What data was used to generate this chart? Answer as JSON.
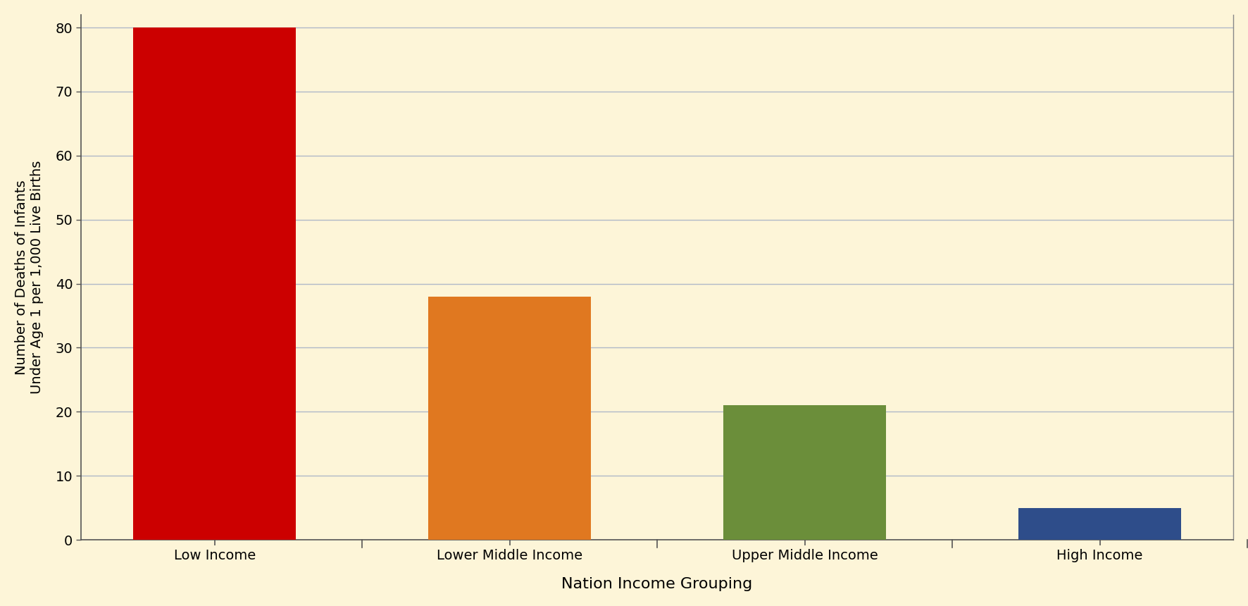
{
  "categories": [
    "Low Income",
    "Lower Middle Income",
    "Upper Middle Income",
    "High Income"
  ],
  "values": [
    80,
    38,
    21,
    5
  ],
  "bar_colors": [
    "#cc0000",
    "#e07820",
    "#6b8e3a",
    "#2e4d8a"
  ],
  "xlabel": "Nation Income Grouping",
  "ylabel": "Number of Deaths of Infants\nUnder Age 1 per 1,000 Live Births",
  "ylim": [
    0,
    82
  ],
  "yticks": [
    0,
    10,
    20,
    30,
    40,
    50,
    60,
    70,
    80
  ],
  "background_color": "#fdf5d8",
  "grid_color": "#b0b8c8",
  "xlabel_fontsize": 16,
  "ylabel_fontsize": 14,
  "tick_fontsize": 14,
  "bar_width": 0.55
}
